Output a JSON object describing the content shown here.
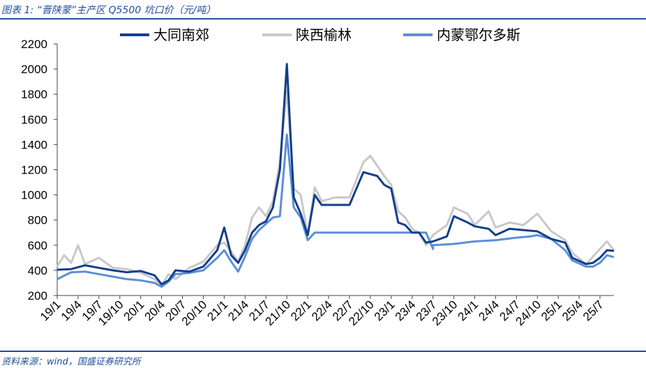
{
  "header": {
    "title": "图表 1:  “晋陕蒙”主产区 Q5500 坑口价（元/吨）"
  },
  "footer": {
    "source": "资料来源：wind，国盛证券研究所"
  },
  "chart_data": {
    "type": "line",
    "ylim": [
      200,
      2200
    ],
    "yticks": [
      200,
      400,
      600,
      800,
      1000,
      1200,
      1400,
      1600,
      1800,
      2000,
      2200
    ],
    "xticks": [
      "19/1",
      "19/4",
      "19/7",
      "19/10",
      "20/1",
      "20/4",
      "20/7",
      "20/10",
      "21/1",
      "21/4",
      "21/7",
      "21/10",
      "22/1",
      "22/4",
      "22/7",
      "22/10",
      "23/1",
      "23/4",
      "23/7",
      "23/10",
      "24/1",
      "24/4",
      "24/7",
      "24/10",
      "25/1",
      "25/4",
      "25/7"
    ],
    "x_range": [
      "19/1",
      "25/9"
    ],
    "legend_position": "top",
    "series": [
      {
        "name": "大同南郊",
        "color": "#0f3e8c",
        "points": [
          [
            "19/1",
            405
          ],
          [
            "19/3",
            410
          ],
          [
            "19/5",
            440
          ],
          [
            "19/7",
            420
          ],
          [
            "19/9",
            400
          ],
          [
            "19/11",
            385
          ],
          [
            "20/1",
            395
          ],
          [
            "20/3",
            360
          ],
          [
            "20/4",
            290
          ],
          [
            "20/5",
            320
          ],
          [
            "20/6",
            400
          ],
          [
            "20/8",
            390
          ],
          [
            "20/10",
            430
          ],
          [
            "20/12",
            560
          ],
          [
            "21/1",
            740
          ],
          [
            "21/2",
            520
          ],
          [
            "21/3",
            460
          ],
          [
            "21/4",
            560
          ],
          [
            "21/5",
            700
          ],
          [
            "21/6",
            760
          ],
          [
            "21/7",
            790
          ],
          [
            "21/8",
            900
          ],
          [
            "21/9",
            1200
          ],
          [
            "21/10",
            2040
          ],
          [
            "21/11",
            980
          ],
          [
            "21/12",
            850
          ],
          [
            "22/1",
            680
          ],
          [
            "22/2",
            1000
          ],
          [
            "22/3",
            920
          ],
          [
            "22/5",
            920
          ],
          [
            "22/7",
            920
          ],
          [
            "22/8",
            1050
          ],
          [
            "22/9",
            1180
          ],
          [
            "22/11",
            1150
          ],
          [
            "22/12",
            1080
          ],
          [
            "23/1",
            1050
          ],
          [
            "23/2",
            780
          ],
          [
            "23/3",
            760
          ],
          [
            "23/4",
            700
          ],
          [
            "23/5",
            700
          ],
          [
            "23/6",
            620
          ],
          [
            "23/7",
            630
          ],
          [
            "23/9",
            670
          ],
          [
            "23/10",
            830
          ],
          [
            "23/12",
            780
          ],
          [
            "24/1",
            750
          ],
          [
            "24/3",
            730
          ],
          [
            "24/4",
            680
          ],
          [
            "24/6",
            730
          ],
          [
            "24/8",
            720
          ],
          [
            "24/10",
            710
          ],
          [
            "24/12",
            650
          ],
          [
            "25/2",
            620
          ],
          [
            "25/3",
            500
          ],
          [
            "25/5",
            450
          ],
          [
            "25/6",
            460
          ],
          [
            "25/7",
            500
          ],
          [
            "25/8",
            560
          ],
          [
            "25/9",
            555
          ]
        ]
      },
      {
        "name": "陕西榆林",
        "color": "#c8c8c8",
        "points": [
          [
            "19/1",
            430
          ],
          [
            "19/2",
            520
          ],
          [
            "19/3",
            460
          ],
          [
            "19/4",
            600
          ],
          [
            "19/5",
            450
          ],
          [
            "19/7",
            500
          ],
          [
            "19/9",
            420
          ],
          [
            "19/11",
            410
          ],
          [
            "20/1",
            380
          ],
          [
            "20/3",
            330
          ],
          [
            "20/4",
            280
          ],
          [
            "20/5",
            370
          ],
          [
            "20/6",
            330
          ],
          [
            "20/8",
            420
          ],
          [
            "20/10",
            470
          ],
          [
            "20/12",
            600
          ],
          [
            "21/1",
            620
          ],
          [
            "21/2",
            550
          ],
          [
            "21/3",
            470
          ],
          [
            "21/4",
            600
          ],
          [
            "21/5",
            820
          ],
          [
            "21/6",
            900
          ],
          [
            "21/7",
            830
          ],
          [
            "21/8",
            950
          ],
          [
            "21/9",
            1260
          ],
          [
            "21/10",
            1830
          ],
          [
            "21/11",
            1050
          ],
          [
            "21/12",
            1000
          ],
          [
            "22/1",
            680
          ],
          [
            "22/2",
            1060
          ],
          [
            "22/3",
            950
          ],
          [
            "22/5",
            980
          ],
          [
            "22/7",
            980
          ],
          [
            "22/8",
            1120
          ],
          [
            "22/9",
            1260
          ],
          [
            "22/10",
            1310
          ],
          [
            "22/12",
            1150
          ],
          [
            "23/1",
            1080
          ],
          [
            "23/2",
            870
          ],
          [
            "23/3",
            820
          ],
          [
            "23/4",
            730
          ],
          [
            "23/5",
            700
          ],
          [
            "23/6",
            600
          ],
          [
            "23/7",
            680
          ],
          [
            "23/9",
            760
          ],
          [
            "23/10",
            900
          ],
          [
            "23/12",
            850
          ],
          [
            "24/1",
            760
          ],
          [
            "24/3",
            870
          ],
          [
            "24/4",
            740
          ],
          [
            "24/6",
            780
          ],
          [
            "24/8",
            760
          ],
          [
            "24/10",
            850
          ],
          [
            "24/12",
            710
          ],
          [
            "25/2",
            640
          ],
          [
            "25/3",
            540
          ],
          [
            "25/5",
            450
          ],
          [
            "25/6",
            510
          ],
          [
            "25/7",
            570
          ],
          [
            "25/8",
            630
          ],
          [
            "25/9",
            560
          ]
        ]
      },
      {
        "name": "内蒙鄂尔多斯",
        "color": "#5b8fd6",
        "points": [
          [
            "19/1",
            330
          ],
          [
            "19/3",
            385
          ],
          [
            "19/5",
            390
          ],
          [
            "19/7",
            370
          ],
          [
            "19/9",
            350
          ],
          [
            "19/11",
            330
          ],
          [
            "20/1",
            320
          ],
          [
            "20/3",
            300
          ],
          [
            "20/4",
            270
          ],
          [
            "20/5",
            310
          ],
          [
            "20/6",
            370
          ],
          [
            "20/8",
            380
          ],
          [
            "20/10",
            400
          ],
          [
            "20/12",
            500
          ],
          [
            "21/1",
            560
          ],
          [
            "21/2",
            470
          ],
          [
            "21/3",
            390
          ],
          [
            "21/4",
            510
          ],
          [
            "21/5",
            650
          ],
          [
            "21/6",
            720
          ],
          [
            "21/7",
            770
          ],
          [
            "21/8",
            820
          ],
          [
            "21/9",
            830
          ],
          [
            "21/10",
            1480
          ],
          [
            "21/11",
            900
          ],
          [
            "21/12",
            820
          ],
          [
            "22/1",
            640
          ],
          [
            "22/2",
            700
          ],
          [
            "22/4",
            700
          ],
          [
            "22/7",
            700
          ],
          [
            "22/10",
            700
          ],
          [
            "23/1",
            700
          ],
          [
            "23/4",
            700
          ],
          [
            "23/6",
            700
          ],
          [
            "23/7",
            570
          ],
          [
            "23/7",
            600
          ],
          [
            "23/10",
            610
          ],
          [
            "24/1",
            630
          ],
          [
            "24/4",
            640
          ],
          [
            "24/7",
            660
          ],
          [
            "24/9",
            670
          ],
          [
            "24/10",
            680
          ],
          [
            "24/12",
            650
          ],
          [
            "25/2",
            560
          ],
          [
            "25/3",
            480
          ],
          [
            "25/5",
            430
          ],
          [
            "25/6",
            430
          ],
          [
            "25/7",
            460
          ],
          [
            "25/8",
            520
          ],
          [
            "25/9",
            505
          ]
        ]
      }
    ]
  }
}
